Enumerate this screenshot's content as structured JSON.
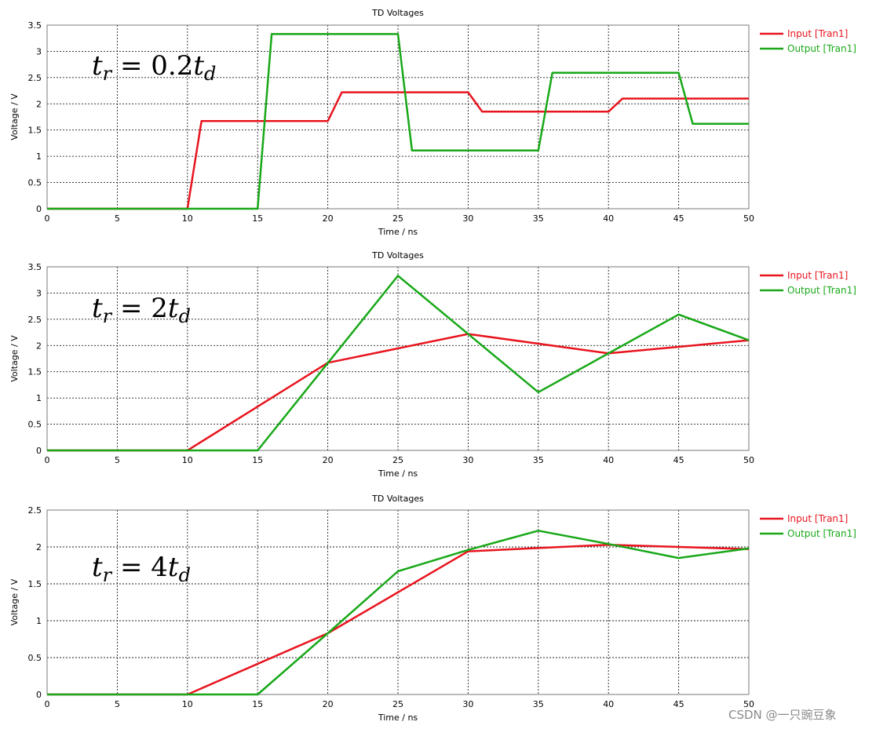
{
  "charts": [
    {
      "annotation": "tr = 0.2td",
      "chart_data": {
        "type": "line",
        "title": "TD Voltages",
        "xlabel": "Time / ns",
        "ylabel": "Voltage / V",
        "xlim": [
          0,
          50
        ],
        "ylim": [
          0,
          3.5
        ],
        "xticks": [
          "0",
          "5",
          "10",
          "15",
          "20",
          "25",
          "30",
          "35",
          "40",
          "45",
          "50"
        ],
        "yticks": [
          "0",
          "0.5",
          "1",
          "1.5",
          "2",
          "2.5",
          "3",
          "3.5"
        ],
        "grid": true,
        "legend_position": "right",
        "series": [
          {
            "name": "Input [Tran1]",
            "color": "#e8141e",
            "x": [
              0,
              10,
              11,
              20,
              21,
              30,
              31,
              40,
              41,
              50
            ],
            "y": [
              0,
              0,
              1.67,
              1.67,
              2.22,
              2.22,
              1.85,
              1.85,
              2.1,
              2.1
            ]
          },
          {
            "name": "Output [Tran1]",
            "color": "#18a818",
            "x": [
              0,
              15,
              16,
              25,
              26,
              35,
              36,
              45,
              46,
              50
            ],
            "y": [
              0,
              0,
              3.33,
              3.33,
              1.11,
              1.11,
              2.59,
              2.59,
              1.62,
              1.62
            ]
          }
        ]
      }
    },
    {
      "annotation": "tr = 2td",
      "chart_data": {
        "type": "line",
        "title": "TD Voltages",
        "xlabel": "Time / ns",
        "ylabel": "Voltage / V",
        "xlim": [
          0,
          50
        ],
        "ylim": [
          0,
          3.5
        ],
        "xticks": [
          "0",
          "5",
          "10",
          "15",
          "20",
          "25",
          "30",
          "35",
          "40",
          "45",
          "50"
        ],
        "yticks": [
          "0",
          "0.5",
          "1",
          "1.5",
          "2",
          "2.5",
          "3",
          "3.5"
        ],
        "grid": true,
        "legend_position": "right",
        "series": [
          {
            "name": "Input [Tran1]",
            "color": "#e8141e",
            "x": [
              0,
              10,
              20,
              30,
              40,
              50
            ],
            "y": [
              0,
              0,
              1.67,
              2.22,
              1.85,
              2.1
            ]
          },
          {
            "name": "Output [Tran1]",
            "color": "#18a818",
            "x": [
              0,
              15,
              25,
              35,
              45,
              50
            ],
            "y": [
              0,
              0,
              3.33,
              1.11,
              2.59,
              2.1
            ]
          }
        ]
      }
    },
    {
      "annotation": "tr = 4td",
      "chart_data": {
        "type": "line",
        "title": "TD Voltages",
        "xlabel": "Time / ns",
        "ylabel": "Voltage / V",
        "xlim": [
          0,
          50
        ],
        "ylim": [
          0,
          2.5
        ],
        "xticks": [
          "0",
          "5",
          "10",
          "15",
          "20",
          "25",
          "30",
          "35",
          "40",
          "45",
          "50"
        ],
        "yticks": [
          "0",
          "0.5",
          "1",
          "1.5",
          "2",
          "2.5"
        ],
        "grid": true,
        "legend_position": "right",
        "series": [
          {
            "name": "Input [Tran1]",
            "color": "#e8141e",
            "x": [
              0,
              10,
              20,
              30,
              40,
              50
            ],
            "y": [
              0,
              0,
              0.83,
              1.94,
              2.03,
              1.97
            ]
          },
          {
            "name": "Output [Tran1]",
            "color": "#18a818",
            "x": [
              0,
              15,
              20,
              25,
              30,
              35,
              40,
              45,
              50
            ],
            "y": [
              0,
              0,
              0.83,
              1.67,
              1.96,
              2.22,
              2.04,
              1.85,
              1.98
            ]
          }
        ]
      }
    }
  ],
  "watermark": "CSDN @一只豌豆象"
}
